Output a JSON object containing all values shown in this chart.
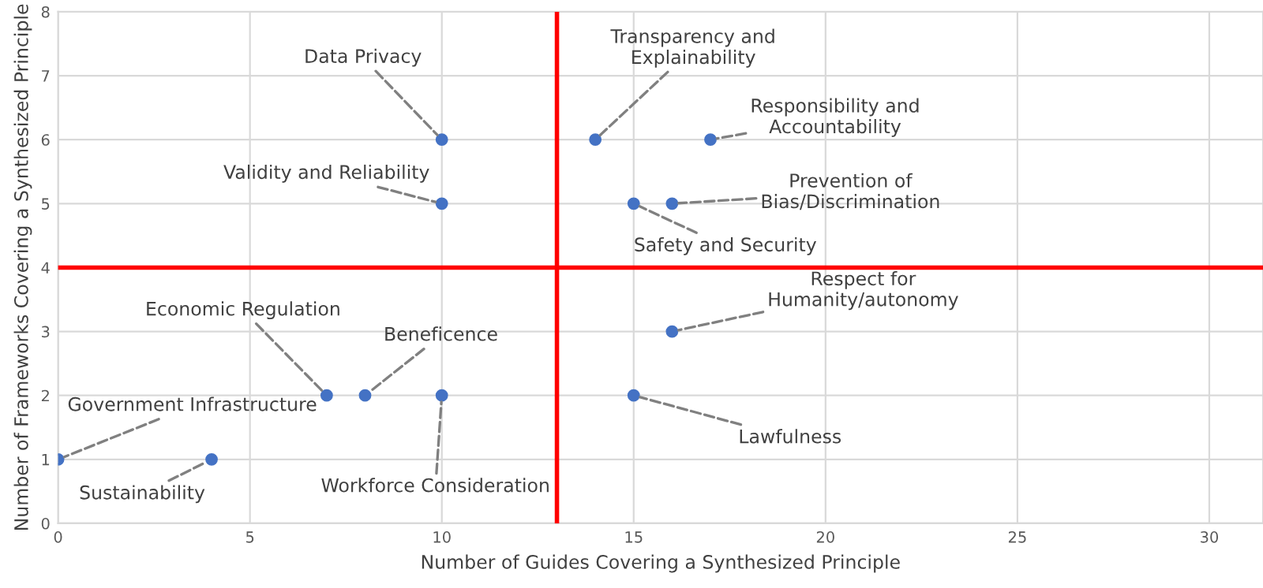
{
  "chart_data": {
    "type": "scatter",
    "xlabel": "Number of Guides Covering a Synthesized Principle",
    "ylabel": "Number of Frameworks Covering a Synthesized Principle",
    "x": [
      0,
      4,
      7,
      8,
      10,
      10,
      10,
      14,
      15,
      16,
      17,
      16,
      15
    ],
    "series": [
      {
        "color": "#4472c4",
        "values": [
          1,
          1,
          2,
          2,
          2,
          5,
          6,
          6,
          5,
          5,
          6,
          3,
          2
        ]
      }
    ],
    "marker": "circle",
    "xlim": [
      0,
      31.4
    ],
    "xticks": [
      0,
      5,
      10,
      15,
      20,
      25,
      30
    ],
    "ylim": [
      0,
      8
    ],
    "yticks": [
      0,
      1,
      2,
      3,
      4,
      5,
      6,
      7,
      8
    ],
    "grid": true,
    "ref_lines": [
      {
        "axis": "x",
        "value": 13,
        "color": "#ff0000"
      },
      {
        "axis": "y",
        "value": 4,
        "color": "#ff0000"
      }
    ],
    "annotations": [
      {
        "text": "Government Infrastructure",
        "x": 0,
        "y": 1
      },
      {
        "text": "Sustainability",
        "x": 4,
        "y": 1
      },
      {
        "text": "Economic Regulation",
        "x": 7,
        "y": 2
      },
      {
        "text": "Beneficence",
        "x": 8,
        "y": 2
      },
      {
        "text": "Workforce Consideration",
        "x": 10,
        "y": 2
      },
      {
        "text": "Validity and Reliability",
        "x": 10,
        "y": 5
      },
      {
        "text": "Data Privacy",
        "x": 10,
        "y": 6
      },
      {
        "text": "Transparency and\nExplainability",
        "x": 14,
        "y": 6
      },
      {
        "text": "Safety and Security",
        "x": 15,
        "y": 5
      },
      {
        "text": "Prevention of\nBias/Discrimination",
        "x": 16,
        "y": 5
      },
      {
        "text": "Responsibility and\nAccountability",
        "x": 17,
        "y": 6
      },
      {
        "text": "Respect for\nHumanity/autonomy",
        "x": 16,
        "y": 3
      },
      {
        "text": "Lawfulness",
        "x": 15,
        "y": 2
      }
    ]
  }
}
